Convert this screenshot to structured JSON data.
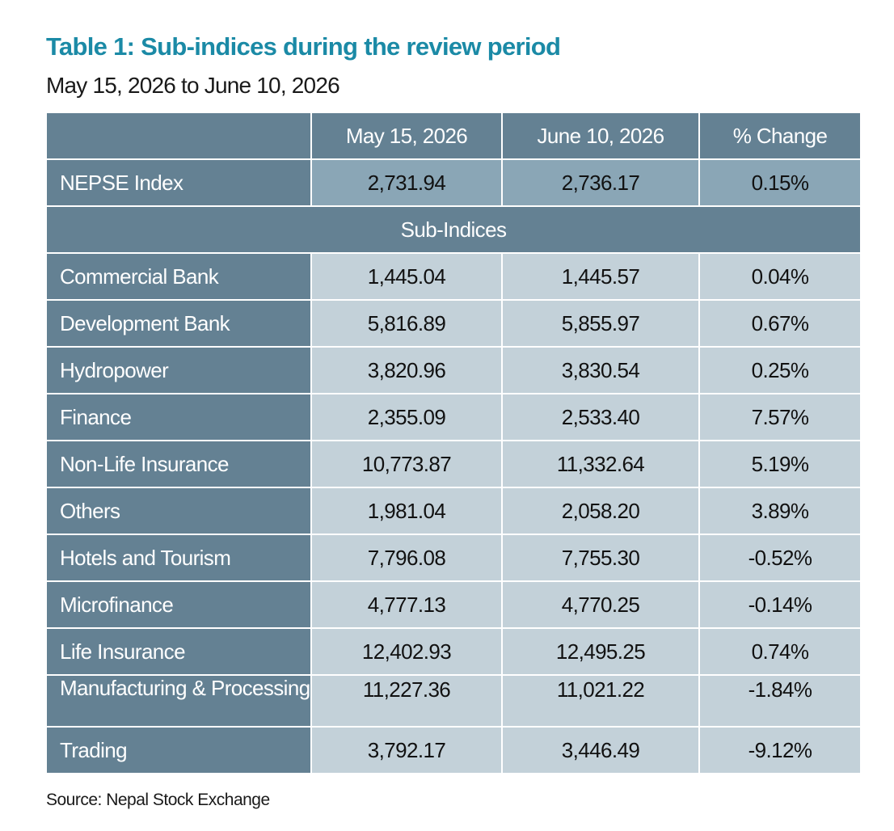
{
  "title": "Table 1: Sub-indices during the review period",
  "subtitle": "May 15, 2026 to June 10, 2026",
  "columns": [
    "",
    "May 15, 2026",
    "June 10, 2026",
    "% Change"
  ],
  "nepse": {
    "label": "NEPSE Index",
    "may": "2,731.94",
    "june": "2,736.17",
    "change": "0.15%"
  },
  "section_label": "Sub-Indices",
  "rows": [
    {
      "label": "Commercial Bank",
      "may": "1,445.04",
      "june": "1,445.57",
      "change": "0.04%"
    },
    {
      "label": "Development Bank",
      "may": "5,816.89",
      "june": "5,855.97",
      "change": "0.67%"
    },
    {
      "label": "Hydropower",
      "may": "3,820.96",
      "june": "3,830.54",
      "change": "0.25%"
    },
    {
      "label": "Finance",
      "may": "2,355.09",
      "june": "2,533.40",
      "change": "7.57%"
    },
    {
      "label": "Non-Life Insurance",
      "may": "10,773.87",
      "june": "11,332.64",
      "change": "5.19%"
    },
    {
      "label": "Others",
      "may": "1,981.04",
      "june": "2,058.20",
      "change": "3.89%"
    },
    {
      "label": "Hotels and Tourism",
      "may": "7,796.08",
      "june": "7,755.30",
      "change": "-0.52%"
    },
    {
      "label": "Microfinance",
      "may": "4,777.13",
      "june": "4,770.25",
      "change": "-0.14%"
    },
    {
      "label": "Life Insurance",
      "may": "12,402.93",
      "june": "12,495.25",
      "change": "0.74%"
    },
    {
      "label": "Manufacturing & Processing",
      "may": "11,227.36",
      "june": "11,021.22",
      "change": "-1.84%"
    },
    {
      "label": "Trading",
      "may": "3,792.17",
      "june": "3,446.49",
      "change": "-9.12%"
    }
  ],
  "source": "Source: Nepal Stock Exchange",
  "colors": {
    "title": "#1b8aa6",
    "header": "#648193",
    "nepse_cell": "#8aa6b6",
    "row_cell": "#c3d1d9"
  }
}
